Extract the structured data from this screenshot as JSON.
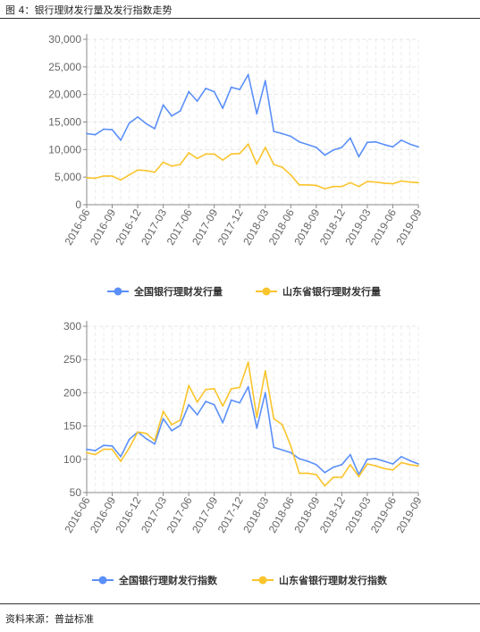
{
  "figure_title": "图 4：银行理财发行量及发行指数走势",
  "source": "资料来源：普益标准",
  "colors": {
    "national": "#5b8ff9",
    "shandong": "#fac42c"
  },
  "chart_data": [
    {
      "type": "line",
      "ylim": [
        0,
        30000
      ],
      "yticks": [
        "0",
        "5,000",
        "10,000",
        "15,000",
        "20,000",
        "25,000",
        "30,000"
      ],
      "x_labels": [
        "2016-06",
        "2016-09",
        "2016-12",
        "2017-03",
        "2017-06",
        "2017-09",
        "2017-12",
        "2018-03",
        "2018-06",
        "2018-09",
        "2018-12",
        "2019-03",
        "2019-06",
        "2019-09"
      ],
      "grid": true,
      "legend": "bottom",
      "series": [
        {
          "name": "全国银行理财发行量",
          "color": "#5b8ff9",
          "values": [
            12900,
            12700,
            13700,
            13600,
            11700,
            14800,
            15900,
            14700,
            13800,
            18100,
            16100,
            17000,
            20500,
            18800,
            21100,
            20500,
            17500,
            21300,
            20900,
            23600,
            16500,
            22500,
            13300,
            12900,
            12400,
            11400,
            10900,
            10400,
            9000,
            9900,
            10400,
            12100,
            8700,
            11300,
            11400,
            10900,
            10500,
            11700,
            11000,
            10500
          ]
        },
        {
          "name": "山东省银行理财发行量",
          "color": "#fac42c",
          "values": [
            4900,
            4800,
            5200,
            5200,
            4500,
            5400,
            6300,
            6200,
            5900,
            7700,
            7000,
            7300,
            9400,
            8400,
            9200,
            9200,
            8100,
            9200,
            9300,
            11000,
            7400,
            10400,
            7300,
            6800,
            5400,
            3600,
            3600,
            3500,
            2900,
            3300,
            3300,
            4000,
            3300,
            4200,
            4100,
            3900,
            3800,
            4300,
            4100,
            4000
          ]
        }
      ]
    },
    {
      "type": "line",
      "ylim": [
        50,
        300
      ],
      "yticks": [
        "50",
        "100",
        "150",
        "200",
        "250",
        "300"
      ],
      "x_labels": [
        "2016-06",
        "2016-09",
        "2016-12",
        "2017-03",
        "2017-06",
        "2017-09",
        "2017-12",
        "2018-03",
        "2018-06",
        "2018-09",
        "2018-12",
        "2019-03",
        "2019-06",
        "2019-09"
      ],
      "grid": true,
      "legend": "bottom",
      "series": [
        {
          "name": "全国银行理财发行指数",
          "color": "#5b8ff9",
          "values": [
            115,
            113,
            121,
            120,
            104,
            130,
            141,
            131,
            123,
            161,
            143,
            151,
            182,
            167,
            187,
            182,
            155,
            189,
            185,
            209,
            147,
            200,
            118,
            114,
            110,
            101,
            97,
            92,
            80,
            88,
            92,
            107,
            77,
            100,
            101,
            97,
            93,
            104,
            98,
            93
          ]
        },
        {
          "name": "山东省银行理财发行指数",
          "color": "#fac42c",
          "values": [
            110,
            107,
            115,
            115,
            97,
            117,
            141,
            139,
            128,
            172,
            152,
            159,
            211,
            186,
            205,
            206,
            180,
            206,
            208,
            246,
            163,
            233,
            161,
            152,
            120,
            79,
            79,
            77,
            60,
            73,
            73,
            92,
            74,
            93,
            90,
            86,
            84,
            95,
            92,
            90
          ]
        }
      ]
    }
  ]
}
